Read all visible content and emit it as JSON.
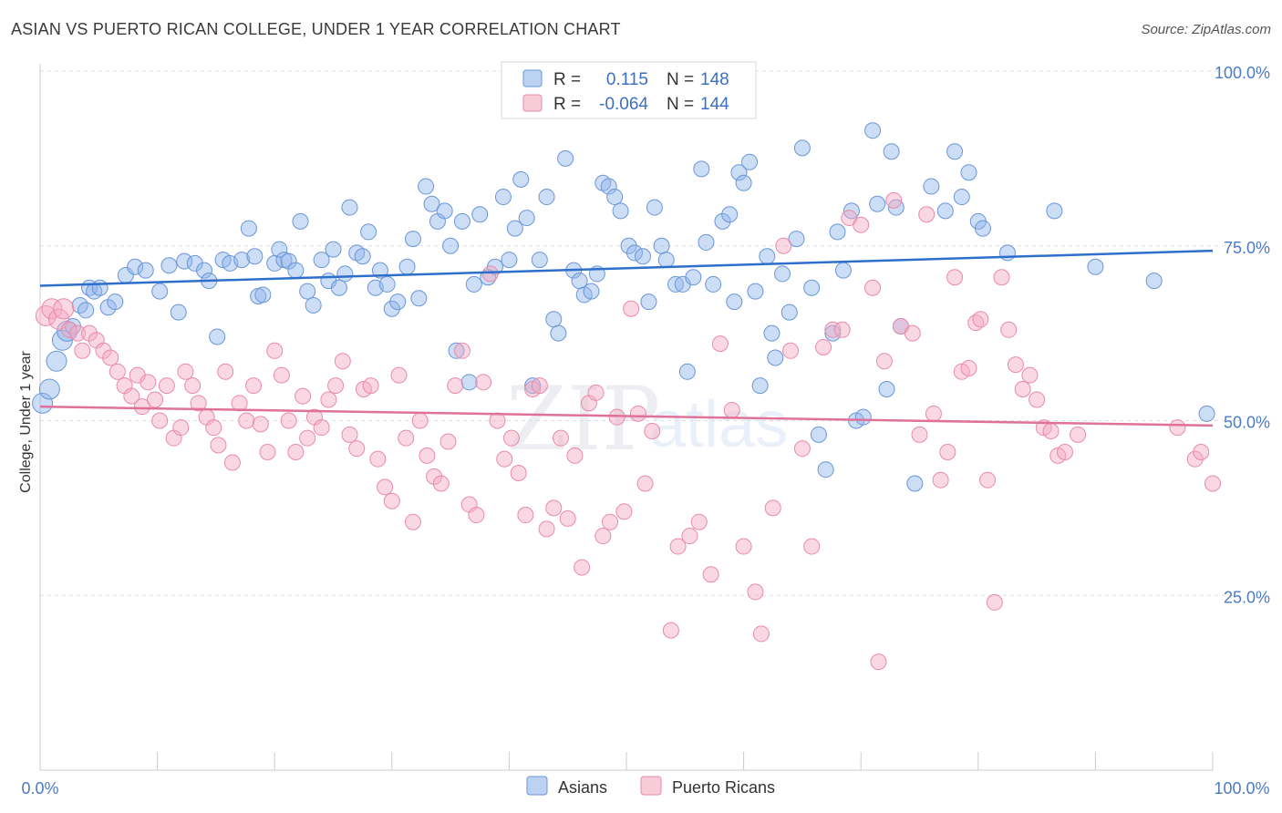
{
  "title": "ASIAN VS PUERTO RICAN COLLEGE, UNDER 1 YEAR CORRELATION CHART",
  "source": "Source: ZipAtlas.com",
  "watermark": {
    "zip": "ZIP",
    "atlas": "atlas"
  },
  "chart_data": {
    "type": "scatter",
    "xlabel": "",
    "ylabel": "College, Under 1 year",
    "xlim": [
      0,
      100
    ],
    "ylim": [
      0,
      100
    ],
    "x_ticks": [
      "0.0%",
      "100.0%"
    ],
    "y_ticks": [
      {
        "value": 25,
        "label": "25.0%"
      },
      {
        "value": 50,
        "label": "50.0%"
      },
      {
        "value": 75,
        "label": "75.0%"
      },
      {
        "value": 100,
        "label": "100.0%"
      }
    ],
    "grid": "horizontal-dashed",
    "legend_top": [
      {
        "r_label": "R =",
        "r_value": "0.115",
        "n_label": "N =",
        "n_value": "148",
        "color": "#8fb4ea"
      },
      {
        "r_label": "R =",
        "r_value": "-0.064",
        "n_label": "N =",
        "n_value": "144",
        "color": "#f4a8c0"
      }
    ],
    "series": [
      {
        "name": "Asians",
        "color": "#8fb4ea",
        "edge": "#6a96d8",
        "trend_color": "#2f6fcc",
        "trend": [
          [
            0,
            69.3
          ],
          [
            100,
            74.3
          ]
        ],
        "points": [
          [
            0.2,
            52.5
          ],
          [
            0.8,
            54.5
          ],
          [
            1.4,
            58.5
          ],
          [
            1.9,
            61.5
          ],
          [
            2.3,
            62.8
          ],
          [
            2.8,
            63.5
          ],
          [
            3.4,
            66.5
          ],
          [
            3.9,
            65.8
          ],
          [
            4.2,
            69.0
          ],
          [
            4.6,
            68.5
          ],
          [
            5.1,
            69.0
          ],
          [
            5.8,
            66.2
          ],
          [
            6.4,
            67.0
          ],
          [
            7.3,
            70.8
          ],
          [
            8.1,
            72.0
          ],
          [
            9.0,
            71.5
          ],
          [
            10.2,
            68.5
          ],
          [
            11.0,
            72.2
          ],
          [
            11.8,
            65.5
          ],
          [
            12.3,
            72.8
          ],
          [
            13.2,
            72.5
          ],
          [
            14.0,
            71.5
          ],
          [
            14.4,
            70.0
          ],
          [
            15.1,
            62.0
          ],
          [
            15.6,
            73.0
          ],
          [
            16.2,
            72.5
          ],
          [
            17.2,
            73.0
          ],
          [
            17.8,
            77.5
          ],
          [
            18.3,
            73.5
          ],
          [
            18.6,
            67.8
          ],
          [
            19.0,
            68.0
          ],
          [
            20.0,
            72.5
          ],
          [
            20.4,
            74.5
          ],
          [
            20.8,
            73.0
          ],
          [
            21.2,
            72.8
          ],
          [
            21.8,
            71.5
          ],
          [
            22.2,
            78.5
          ],
          [
            22.8,
            68.5
          ],
          [
            23.3,
            66.5
          ],
          [
            24.0,
            73.0
          ],
          [
            24.6,
            70.0
          ],
          [
            25.0,
            74.5
          ],
          [
            25.5,
            69.0
          ],
          [
            26.0,
            71.0
          ],
          [
            26.4,
            80.5
          ],
          [
            27.0,
            74.0
          ],
          [
            27.5,
            73.5
          ],
          [
            28.0,
            77.0
          ],
          [
            28.6,
            69.0
          ],
          [
            29.0,
            71.5
          ],
          [
            29.6,
            69.5
          ],
          [
            30.0,
            66.0
          ],
          [
            30.5,
            67.0
          ],
          [
            31.3,
            72.0
          ],
          [
            31.8,
            76.0
          ],
          [
            32.3,
            67.5
          ],
          [
            32.9,
            83.5
          ],
          [
            33.4,
            81.0
          ],
          [
            33.9,
            78.5
          ],
          [
            34.5,
            80.0
          ],
          [
            35.0,
            75.0
          ],
          [
            35.5,
            60.0
          ],
          [
            36.0,
            78.5
          ],
          [
            36.6,
            55.5
          ],
          [
            37.0,
            69.5
          ],
          [
            37.5,
            79.5
          ],
          [
            38.2,
            70.5
          ],
          [
            38.8,
            72.0
          ],
          [
            39.5,
            82.0
          ],
          [
            40.0,
            73.0
          ],
          [
            40.5,
            77.5
          ],
          [
            41.0,
            84.5
          ],
          [
            41.5,
            79.0
          ],
          [
            42.0,
            55.0
          ],
          [
            42.6,
            73.0
          ],
          [
            43.2,
            82.0
          ],
          [
            43.8,
            64.5
          ],
          [
            44.2,
            62.5
          ],
          [
            44.8,
            87.5
          ],
          [
            45.5,
            71.5
          ],
          [
            46.0,
            70.0
          ],
          [
            46.4,
            68.0
          ],
          [
            47.0,
            68.5
          ],
          [
            47.5,
            71.0
          ],
          [
            48.0,
            84.0
          ],
          [
            48.5,
            83.5
          ],
          [
            49.0,
            82.0
          ],
          [
            49.5,
            80.0
          ],
          [
            50.2,
            75.0
          ],
          [
            50.7,
            74.0
          ],
          [
            51.4,
            73.5
          ],
          [
            51.9,
            67.0
          ],
          [
            52.4,
            80.5
          ],
          [
            53.0,
            75.0
          ],
          [
            53.4,
            73.0
          ],
          [
            54.2,
            69.5
          ],
          [
            54.8,
            69.5
          ],
          [
            55.2,
            57.0
          ],
          [
            55.7,
            70.5
          ],
          [
            56.4,
            86.0
          ],
          [
            56.8,
            75.5
          ],
          [
            57.4,
            69.5
          ],
          [
            58.2,
            78.5
          ],
          [
            58.8,
            79.5
          ],
          [
            59.2,
            67.0
          ],
          [
            59.6,
            85.5
          ],
          [
            60.0,
            84.0
          ],
          [
            60.5,
            87.0
          ],
          [
            61.0,
            68.5
          ],
          [
            61.4,
            55.0
          ],
          [
            62.0,
            73.5
          ],
          [
            62.4,
            62.5
          ],
          [
            62.7,
            59.0
          ],
          [
            63.3,
            71.0
          ],
          [
            63.9,
            65.5
          ],
          [
            64.5,
            76.0
          ],
          [
            65.0,
            89.0
          ],
          [
            65.8,
            69.0
          ],
          [
            66.4,
            48.0
          ],
          [
            67.0,
            43.0
          ],
          [
            67.6,
            62.5
          ],
          [
            68.0,
            77.0
          ],
          [
            68.5,
            71.5
          ],
          [
            69.2,
            80.0
          ],
          [
            69.6,
            50.0
          ],
          [
            70.2,
            50.5
          ],
          [
            71.0,
            91.5
          ],
          [
            71.4,
            81.0
          ],
          [
            72.2,
            54.5
          ],
          [
            72.6,
            88.5
          ],
          [
            73.0,
            80.5
          ],
          [
            73.4,
            63.5
          ],
          [
            74.6,
            41.0
          ],
          [
            76.0,
            83.5
          ],
          [
            77.2,
            80.0
          ],
          [
            78.0,
            88.5
          ],
          [
            78.6,
            82.0
          ],
          [
            79.2,
            85.5
          ],
          [
            80.0,
            78.5
          ],
          [
            80.4,
            77.5
          ],
          [
            82.5,
            74.0
          ],
          [
            86.5,
            80.0
          ],
          [
            90.0,
            72.0
          ],
          [
            95.0,
            70.0
          ],
          [
            99.5,
            51.0
          ]
        ]
      },
      {
        "name": "Puerto Ricans",
        "color": "#f4a8c0",
        "edge": "#e98aab",
        "trend_color": "#e0719a",
        "trend": [
          [
            0,
            52.0
          ],
          [
            100,
            49.3
          ]
        ],
        "points": [
          [
            0.5,
            65.0
          ],
          [
            1.0,
            66.0
          ],
          [
            1.6,
            64.5
          ],
          [
            2.0,
            66.0
          ],
          [
            2.5,
            63.0
          ],
          [
            3.2,
            62.5
          ],
          [
            3.6,
            60.0
          ],
          [
            4.2,
            62.5
          ],
          [
            4.8,
            61.5
          ],
          [
            5.4,
            60.0
          ],
          [
            6.0,
            59.0
          ],
          [
            6.6,
            57.0
          ],
          [
            7.2,
            55.0
          ],
          [
            7.8,
            53.5
          ],
          [
            8.3,
            56.5
          ],
          [
            8.7,
            52.0
          ],
          [
            9.2,
            55.5
          ],
          [
            9.8,
            53.0
          ],
          [
            10.2,
            50.0
          ],
          [
            10.8,
            55.0
          ],
          [
            11.4,
            47.5
          ],
          [
            12.0,
            49.0
          ],
          [
            12.4,
            57.0
          ],
          [
            13.0,
            55.0
          ],
          [
            13.5,
            52.5
          ],
          [
            14.2,
            50.5
          ],
          [
            14.8,
            49.0
          ],
          [
            15.2,
            46.5
          ],
          [
            15.8,
            57.0
          ],
          [
            16.4,
            44.0
          ],
          [
            17.0,
            52.5
          ],
          [
            17.6,
            50.0
          ],
          [
            18.2,
            55.0
          ],
          [
            18.8,
            49.5
          ],
          [
            19.4,
            45.5
          ],
          [
            20.0,
            60.0
          ],
          [
            20.6,
            56.5
          ],
          [
            21.2,
            50.0
          ],
          [
            21.8,
            45.5
          ],
          [
            22.4,
            53.5
          ],
          [
            22.8,
            47.5
          ],
          [
            23.4,
            50.5
          ],
          [
            24.0,
            49.0
          ],
          [
            24.6,
            53.0
          ],
          [
            25.2,
            55.0
          ],
          [
            25.8,
            58.5
          ],
          [
            26.4,
            48.0
          ],
          [
            27.0,
            46.0
          ],
          [
            27.6,
            54.5
          ],
          [
            28.2,
            55.0
          ],
          [
            28.8,
            44.5
          ],
          [
            29.4,
            40.5
          ],
          [
            30.0,
            38.5
          ],
          [
            30.6,
            56.5
          ],
          [
            31.2,
            47.5
          ],
          [
            31.8,
            35.5
          ],
          [
            32.4,
            50.0
          ],
          [
            33.0,
            45.0
          ],
          [
            33.6,
            42.0
          ],
          [
            34.2,
            41.0
          ],
          [
            34.8,
            47.0
          ],
          [
            35.4,
            55.0
          ],
          [
            36.0,
            60.0
          ],
          [
            36.6,
            38.0
          ],
          [
            37.2,
            36.5
          ],
          [
            37.8,
            55.5
          ],
          [
            38.4,
            71.0
          ],
          [
            39.0,
            50.0
          ],
          [
            39.6,
            44.5
          ],
          [
            40.2,
            47.5
          ],
          [
            40.8,
            42.5
          ],
          [
            41.4,
            36.5
          ],
          [
            42.0,
            54.5
          ],
          [
            42.6,
            55.0
          ],
          [
            43.2,
            34.5
          ],
          [
            43.8,
            37.5
          ],
          [
            44.4,
            47.5
          ],
          [
            45.0,
            36.0
          ],
          [
            45.6,
            45.0
          ],
          [
            46.2,
            29.0
          ],
          [
            46.8,
            52.5
          ],
          [
            47.4,
            54.0
          ],
          [
            48.0,
            33.5
          ],
          [
            48.6,
            35.5
          ],
          [
            49.2,
            50.5
          ],
          [
            49.8,
            37.0
          ],
          [
            50.4,
            66.0
          ],
          [
            51.0,
            51.0
          ],
          [
            51.6,
            41.0
          ],
          [
            52.2,
            48.5
          ],
          [
            53.8,
            20.0
          ],
          [
            54.4,
            32.0
          ],
          [
            55.4,
            33.5
          ],
          [
            56.2,
            35.5
          ],
          [
            57.2,
            28.0
          ],
          [
            58.0,
            61.0
          ],
          [
            59.0,
            51.5
          ],
          [
            60.0,
            32.0
          ],
          [
            61.0,
            25.5
          ],
          [
            61.5,
            19.5
          ],
          [
            62.5,
            37.5
          ],
          [
            63.4,
            75.0
          ],
          [
            64.0,
            60.0
          ],
          [
            65.0,
            46.0
          ],
          [
            65.8,
            32.0
          ],
          [
            66.8,
            60.5
          ],
          [
            67.6,
            63.0
          ],
          [
            68.4,
            63.0
          ],
          [
            69.0,
            79.0
          ],
          [
            70.0,
            78.0
          ],
          [
            71.0,
            69.0
          ],
          [
            71.5,
            15.5
          ],
          [
            72.0,
            58.5
          ],
          [
            72.8,
            81.5
          ],
          [
            73.4,
            63.5
          ],
          [
            74.4,
            62.5
          ],
          [
            75.0,
            48.0
          ],
          [
            75.6,
            79.5
          ],
          [
            76.2,
            51.0
          ],
          [
            76.8,
            41.5
          ],
          [
            77.4,
            45.5
          ],
          [
            78.0,
            70.5
          ],
          [
            78.6,
            57.0
          ],
          [
            79.2,
            57.5
          ],
          [
            79.8,
            64.0
          ],
          [
            80.2,
            64.5
          ],
          [
            80.8,
            41.5
          ],
          [
            81.4,
            24.0
          ],
          [
            82.0,
            70.5
          ],
          [
            82.6,
            63.0
          ],
          [
            83.2,
            58.0
          ],
          [
            83.8,
            54.5
          ],
          [
            84.4,
            56.5
          ],
          [
            85.0,
            53.0
          ],
          [
            85.6,
            49.0
          ],
          [
            86.2,
            48.5
          ],
          [
            86.8,
            45.0
          ],
          [
            87.4,
            45.5
          ],
          [
            88.5,
            48.0
          ],
          [
            97.0,
            49.0
          ],
          [
            98.5,
            44.5
          ],
          [
            99.0,
            45.5
          ],
          [
            100.0,
            41.0
          ]
        ]
      }
    ]
  }
}
